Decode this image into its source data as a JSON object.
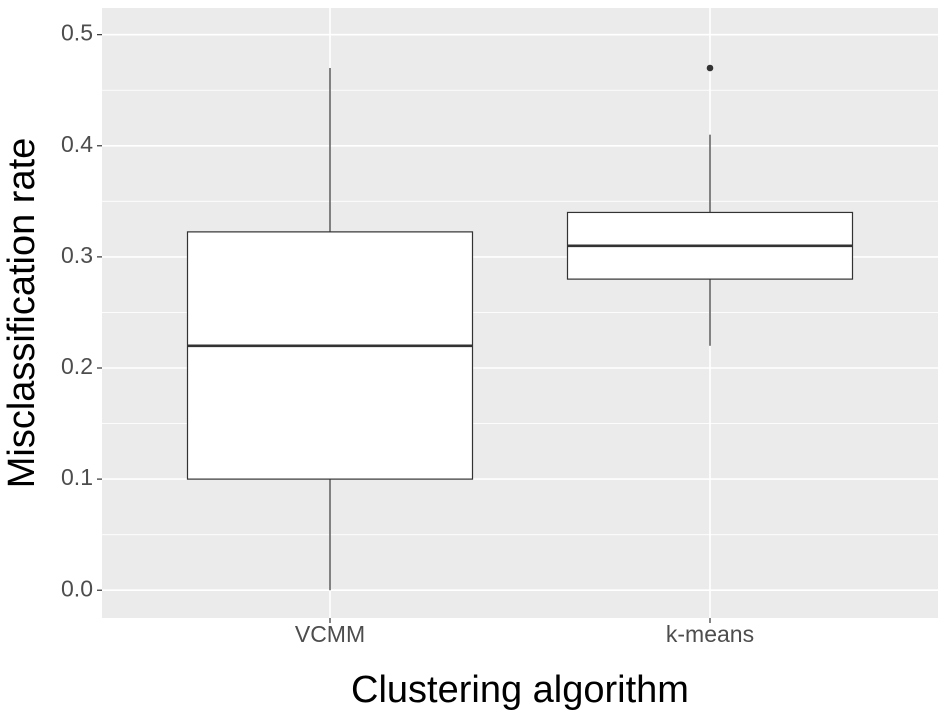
{
  "chart_data": {
    "type": "box",
    "x_label": "Clustering algorithm",
    "y_label": "Misclassification rate",
    "categories": [
      "VCMM",
      "k-means"
    ],
    "boxes": [
      {
        "whislo": 0.0,
        "q1": 0.1,
        "med": 0.22,
        "q3": 0.3225,
        "whishi": 0.47,
        "outliers": []
      },
      {
        "whislo": 0.22,
        "q1": 0.28,
        "med": 0.31,
        "q3": 0.34,
        "whishi": 0.41,
        "outliers": [
          0.47
        ]
      }
    ],
    "box_fill": "#ffffff",
    "box_stroke": "#333333",
    "ylim": [
      -0.025,
      0.524
    ],
    "yticks": [
      {
        "value": 0,
        "label": "0.0"
      },
      0.1,
      0.2,
      0.3,
      0.4,
      0.5
    ],
    "yticks_minor": [
      0.05,
      0.15,
      0.25,
      0.35,
      0.45
    ],
    "grid": true
  }
}
